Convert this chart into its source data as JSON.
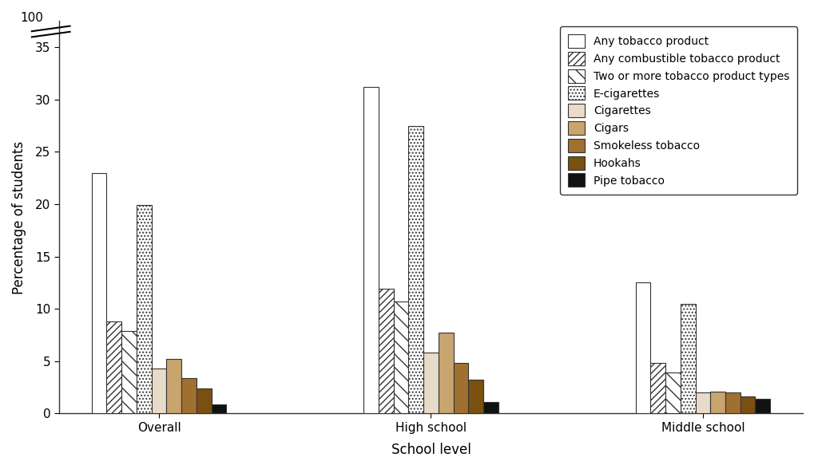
{
  "categories": [
    "Overall",
    "High school",
    "Middle school"
  ],
  "series": [
    {
      "label": "Any tobacco product",
      "values": [
        23.0,
        31.2,
        12.5
      ],
      "color": "#ffffff",
      "edgecolor": "#333333",
      "hatch": null
    },
    {
      "label": "Any combustible tobacco product",
      "values": [
        8.8,
        11.9,
        4.8
      ],
      "color": "#ffffff",
      "edgecolor": "#333333",
      "hatch": "////"
    },
    {
      "label": "Two or more tobacco product types",
      "values": [
        7.9,
        10.7,
        3.9
      ],
      "color": "#ffffff",
      "edgecolor": "#333333",
      "hatch": "\\\\"
    },
    {
      "label": "E-cigarettes",
      "values": [
        19.9,
        27.5,
        10.5
      ],
      "color": "#ffffff",
      "edgecolor": "#333333",
      "hatch": "...."
    },
    {
      "label": "Cigarettes",
      "values": [
        4.3,
        5.8,
        2.0
      ],
      "color": "#e8dcc8",
      "edgecolor": "#333333",
      "hatch": null
    },
    {
      "label": "Cigars",
      "values": [
        5.2,
        7.7,
        2.1
      ],
      "color": "#c8a46e",
      "edgecolor": "#333333",
      "hatch": null
    },
    {
      "label": "Smokeless tobacco",
      "values": [
        3.4,
        4.8,
        2.0
      ],
      "color": "#a07030",
      "edgecolor": "#333333",
      "hatch": null
    },
    {
      "label": "Hookahs",
      "values": [
        2.4,
        3.2,
        1.6
      ],
      "color": "#7a5010",
      "edgecolor": "#333333",
      "hatch": null
    },
    {
      "label": "Pipe tobacco",
      "values": [
        0.9,
        1.1,
        1.4
      ],
      "color": "#111111",
      "edgecolor": "#333333",
      "hatch": null
    }
  ],
  "xlabel": "School level",
  "ylabel": "Percentage of students",
  "ylim_display": 36,
  "yticks": [
    0,
    5,
    10,
    15,
    20,
    25,
    30,
    35
  ],
  "bar_width": 0.055,
  "group_positions": [
    0.35,
    1.35,
    2.35
  ],
  "background_color": "#ffffff",
  "axis_color": "#333333",
  "font_size": 11,
  "legend_fontsize": 10,
  "axis_label_fontsize": 12
}
